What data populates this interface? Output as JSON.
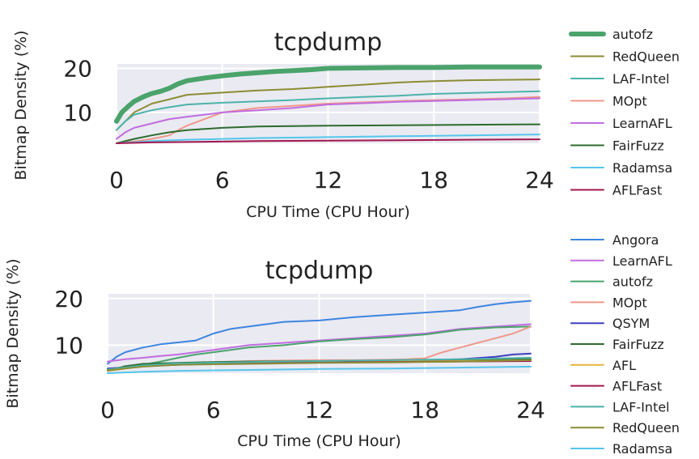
{
  "chart_data": [
    {
      "type": "line",
      "title": "tcpdump",
      "xlabel": "CPU Time (CPU Hour)",
      "ylabel": "Bitmap Density (%)",
      "xlim": [
        0,
        24
      ],
      "ylim": [
        3,
        21
      ],
      "xticks": [
        0,
        6,
        12,
        18,
        24
      ],
      "xtick_labels": [
        "0",
        "6",
        "12",
        "18",
        "24"
      ],
      "yticks": [
        10,
        20
      ],
      "ytick_labels": [
        "10",
        "20"
      ],
      "grid": true,
      "legend_position": "right",
      "series": [
        {
          "name": "autofz",
          "color": "#4aa36b",
          "width": 6,
          "x": [
            0,
            0.3,
            0.7,
            1,
            1.5,
            2,
            2.5,
            3,
            3.5,
            4,
            5,
            6,
            7,
            8,
            9,
            10,
            11,
            12,
            14,
            16,
            18,
            20,
            22,
            24
          ],
          "y": [
            8,
            10,
            11.5,
            12.5,
            13.5,
            14.3,
            14.8,
            15.5,
            16.5,
            17.2,
            17.8,
            18.3,
            18.7,
            19,
            19.3,
            19.5,
            19.7,
            20,
            20.1,
            20.2,
            20.2,
            20.3,
            20.3,
            20.3
          ]
        },
        {
          "name": "RedQueen",
          "color": "#8c8c35",
          "width": 2,
          "x": [
            0,
            0.5,
            1,
            2,
            3,
            4,
            6,
            8,
            10,
            12,
            14,
            16,
            18,
            20,
            22,
            24
          ],
          "y": [
            6,
            8,
            10,
            12,
            13,
            14,
            14.5,
            15,
            15.3,
            15.8,
            16.3,
            16.8,
            17.1,
            17.3,
            17.4,
            17.5
          ]
        },
        {
          "name": "LAF-Intel",
          "color": "#4bb3aa",
          "width": 2,
          "x": [
            0,
            0.5,
            1,
            2,
            3,
            4,
            6,
            8,
            10,
            12,
            14,
            16,
            18,
            20,
            22,
            24
          ],
          "y": [
            6,
            8,
            9.5,
            10.5,
            11.2,
            11.8,
            12.2,
            12.5,
            12.8,
            13.2,
            13.5,
            13.8,
            14.2,
            14.4,
            14.6,
            14.8
          ]
        },
        {
          "name": "MOpt",
          "color": "#f0988a",
          "width": 2,
          "x": [
            0,
            1,
            2,
            3,
            3.5,
            4,
            5,
            6,
            8,
            10,
            12,
            14,
            16,
            18,
            20,
            22,
            24
          ],
          "y": [
            3,
            3.4,
            4,
            4.8,
            6,
            7,
            8.5,
            10,
            11,
            11.5,
            12,
            12.3,
            12.6,
            12.8,
            13,
            13.2,
            13.5
          ]
        },
        {
          "name": "LearnAFL",
          "color": "#c06de0",
          "width": 2,
          "x": [
            0,
            0.5,
            1,
            2,
            3,
            4,
            5,
            6,
            8,
            10,
            12,
            14,
            16,
            18,
            20,
            22,
            24
          ],
          "y": [
            4,
            5.5,
            6.5,
            7.5,
            8.5,
            9,
            9.5,
            10,
            10.5,
            11,
            11.8,
            12.1,
            12.4,
            12.6,
            12.8,
            13,
            13.2
          ]
        },
        {
          "name": "FairFuzz",
          "color": "#2d6b2d",
          "width": 2,
          "x": [
            0,
            1,
            2,
            3,
            4,
            6,
            8,
            10,
            12,
            16,
            20,
            24
          ],
          "y": [
            3,
            4,
            4.8,
            5.5,
            6,
            6.5,
            6.8,
            6.9,
            7,
            7.1,
            7.2,
            7.3
          ]
        },
        {
          "name": "Radamsa",
          "color": "#55c6ec",
          "width": 2,
          "x": [
            0,
            2,
            4,
            6,
            8,
            12,
            16,
            20,
            24
          ],
          "y": [
            3,
            3.5,
            3.8,
            4,
            4.2,
            4.4,
            4.6,
            4.8,
            5
          ]
        },
        {
          "name": "AFLFast",
          "color": "#a3184f",
          "width": 2,
          "x": [
            0,
            2,
            4,
            8,
            12,
            16,
            20,
            24
          ],
          "y": [
            3,
            3.2,
            3.3,
            3.5,
            3.6,
            3.7,
            3.8,
            3.9
          ]
        }
      ]
    },
    {
      "type": "line",
      "title": "tcpdump",
      "xlabel": "CPU Time (CPU Hour)",
      "ylabel": "Bitmap Density (%)",
      "xlim": [
        0,
        24
      ],
      "ylim": [
        4,
        21
      ],
      "xticks": [
        0,
        6,
        12,
        18,
        24
      ],
      "xtick_labels": [
        "0",
        "6",
        "12",
        "18",
        "24"
      ],
      "yticks": [
        10,
        20
      ],
      "ytick_labels": [
        "10",
        "20"
      ],
      "grid": true,
      "legend_position": "right",
      "series": [
        {
          "name": "Angora",
          "color": "#3d85e0",
          "width": 2,
          "x": [
            0,
            0.5,
            1,
            2,
            3,
            4,
            5,
            6,
            7,
            8,
            9,
            10,
            12,
            14,
            16,
            18,
            20,
            21,
            22,
            23,
            24
          ],
          "y": [
            6,
            7.5,
            8.5,
            9.5,
            10.2,
            10.6,
            11,
            12.5,
            13.5,
            14,
            14.5,
            15,
            15.3,
            16,
            16.5,
            17,
            17.5,
            18.2,
            18.8,
            19.2,
            19.5
          ]
        },
        {
          "name": "LearnAFL",
          "color": "#c06de0",
          "width": 2,
          "x": [
            0,
            1,
            2,
            3,
            4,
            5,
            6,
            8,
            10,
            12,
            14,
            16,
            18,
            20,
            22,
            24
          ],
          "y": [
            6.5,
            7,
            7.3,
            7.7,
            8,
            8.5,
            9,
            10,
            10.5,
            11,
            11.5,
            12,
            12.5,
            13.5,
            14,
            14.5
          ]
        },
        {
          "name": "autofz",
          "color": "#4aa36b",
          "width": 2,
          "x": [
            0,
            1,
            2,
            3,
            4,
            5,
            6,
            8,
            10,
            12,
            14,
            16,
            18,
            20,
            22,
            24
          ],
          "y": [
            4.5,
            5,
            5.8,
            6.5,
            7.3,
            8,
            8.5,
            9.5,
            10,
            10.8,
            11.3,
            11.7,
            12.3,
            13.3,
            13.8,
            14
          ]
        },
        {
          "name": "MOpt",
          "color": "#f0988a",
          "width": 2,
          "x": [
            0,
            2,
            4,
            6,
            8,
            10,
            12,
            14,
            16,
            17,
            18,
            19,
            20,
            21,
            22,
            23,
            24
          ],
          "y": [
            5,
            5.5,
            6,
            6.4,
            6.6,
            6.7,
            6.8,
            6.8,
            6.9,
            7,
            7.2,
            8.5,
            9.5,
            10.5,
            11.5,
            12.5,
            14
          ]
        },
        {
          "name": "QSYM",
          "color": "#3f3fbf",
          "width": 2,
          "x": [
            0,
            2,
            4,
            6,
            8,
            12,
            16,
            20,
            22,
            23,
            24
          ],
          "y": [
            5,
            5.5,
            5.8,
            6,
            6.2,
            6.5,
            6.7,
            7,
            7.5,
            8,
            8.2
          ]
        },
        {
          "name": "FairFuzz",
          "color": "#2d6b2d",
          "width": 2,
          "x": [
            0,
            1,
            2,
            4,
            6,
            8,
            12,
            16,
            20,
            24
          ],
          "y": [
            4.5,
            5.5,
            6,
            6.2,
            6.4,
            6.5,
            6.6,
            6.7,
            6.8,
            7
          ]
        },
        {
          "name": "AFL",
          "color": "#e6b43c",
          "width": 2,
          "x": [
            0,
            2,
            4,
            8,
            12,
            16,
            20,
            24
          ],
          "y": [
            4.5,
            5.5,
            6,
            6.2,
            6.4,
            6.5,
            6.6,
            6.8
          ]
        },
        {
          "name": "AFLFast",
          "color": "#a3184f",
          "width": 2,
          "x": [
            0,
            2,
            4,
            8,
            12,
            16,
            20,
            24
          ],
          "y": [
            4.6,
            5.6,
            6,
            6.2,
            6.3,
            6.4,
            6.5,
            6.6
          ]
        },
        {
          "name": "LAF-Intel",
          "color": "#4bb3aa",
          "width": 2,
          "x": [
            0,
            2,
            4,
            8,
            12,
            16,
            20,
            24
          ],
          "y": [
            4.8,
            5.7,
            6.1,
            6.4,
            6.6,
            6.8,
            7,
            7.3
          ]
        },
        {
          "name": "RedQueen",
          "color": "#8c8c35",
          "width": 2,
          "x": [
            0,
            2,
            4,
            8,
            12,
            16,
            20,
            24
          ],
          "y": [
            4.6,
            5.4,
            5.8,
            6,
            6.2,
            6.3,
            6.5,
            6.8
          ]
        },
        {
          "name": "Radamsa",
          "color": "#55c6ec",
          "width": 2,
          "x": [
            0,
            2,
            4,
            8,
            12,
            16,
            20,
            24
          ],
          "y": [
            4,
            4.3,
            4.5,
            4.7,
            4.9,
            5,
            5.2,
            5.4
          ]
        }
      ]
    }
  ]
}
